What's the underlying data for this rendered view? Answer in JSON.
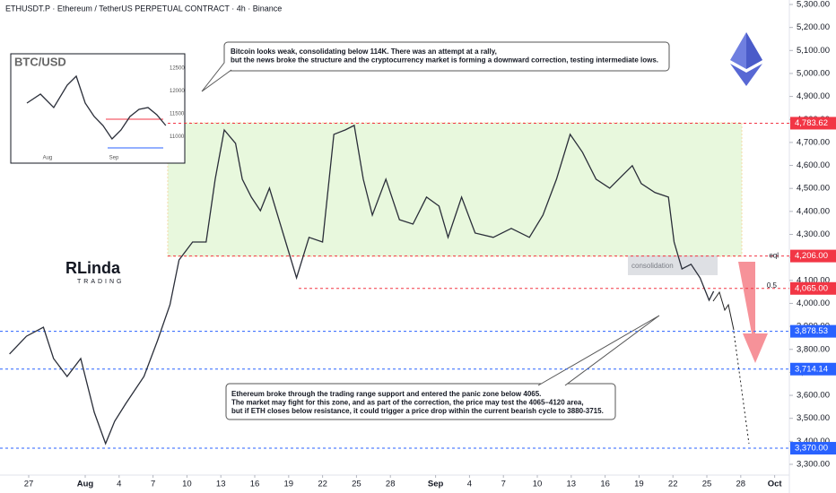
{
  "chart_data": [
    {
      "type": "line",
      "header": "ETHUSDT.P · Ethereum / TetherUS PERPETUAL CONTRACT · 4h · Binance",
      "x": [
        -1.7,
        -0.2,
        1.3,
        2.2,
        3.4,
        4.6,
        5.8,
        6.8,
        7.6,
        8.6,
        10.2,
        11.4,
        12.5,
        13.3,
        14.5,
        15.7,
        16.5,
        17.3,
        18.3,
        18.9,
        19.7,
        20.5,
        21.3,
        22.5,
        23.7,
        24.8,
        26.0,
        27.0,
        28.0,
        28.8,
        29.6,
        30.4,
        31.6,
        32.8,
        34.0,
        35.2,
        36.3,
        37.1,
        38.3,
        39.5,
        41.1,
        42.7,
        44.3,
        45.5,
        46.7,
        47.9,
        49.0,
        50.2,
        51.4,
        52.6,
        53.4,
        54.2,
        55.4,
        56.6,
        57.1,
        57.8,
        58.6,
        59.4,
        60.2,
        60.6
      ],
      "values": [
        3780,
        3857,
        3896,
        3760,
        3682,
        3760,
        3526,
        3390,
        3487,
        3565,
        3682,
        3838,
        3994,
        4189,
        4267,
        4267,
        4540,
        4754,
        4696,
        4540,
        4462,
        4403,
        4501,
        4306,
        4111,
        4287,
        4267,
        4735,
        4754,
        4774,
        4540,
        4384,
        4540,
        4364,
        4345,
        4462,
        4423,
        4287,
        4462,
        4306,
        4287,
        4326,
        4287,
        4384,
        4540,
        4735,
        4657,
        4540,
        4501,
        4560,
        4599,
        4521,
        4482,
        4462,
        4267,
        4150,
        4170,
        4111,
        4014,
        4053
      ],
      "color": "#2a2e39",
      "xlim": [
        -2.54,
        67.3
      ],
      "ylim": [
        3253.2,
        5319.5
      ],
      "yticks": [
        {
          "value": 3300,
          "label": "3,300.00"
        },
        {
          "value": 3400,
          "label": "3,400.00"
        },
        {
          "value": 3500,
          "label": "3,500.00"
        },
        {
          "value": 3600,
          "label": "3,600.00"
        },
        {
          "value": 3700,
          "label": "3,700.00"
        },
        {
          "value": 3800,
          "label": "3,800.00"
        },
        {
          "value": 3900,
          "label": "3,900.00"
        },
        {
          "value": 4000,
          "label": "4,000.00"
        },
        {
          "value": 4100,
          "label": "4,100.00"
        },
        {
          "value": 4200,
          "label": "4,200.00"
        },
        {
          "value": 4300,
          "label": "4,300.00"
        },
        {
          "value": 4400,
          "label": "4,400.00"
        },
        {
          "value": 4500,
          "label": "4,500.00"
        },
        {
          "value": 4600,
          "label": "4,600.00"
        },
        {
          "value": 4700,
          "label": "4,700.00"
        },
        {
          "value": 4800,
          "label": "4,800.00"
        },
        {
          "value": 4900,
          "label": "4,900.00"
        },
        {
          "value": 5000,
          "label": "5,000.00"
        },
        {
          "value": 5100,
          "label": "5,100.00"
        },
        {
          "value": 5200,
          "label": "5,200.00"
        },
        {
          "value": 5300,
          "label": "5,300.00"
        }
      ],
      "xticks": [
        {
          "value": 0,
          "label": "27"
        },
        {
          "value": 5,
          "label": "Aug"
        },
        {
          "value": 8,
          "label": "4"
        },
        {
          "value": 11,
          "label": "7"
        },
        {
          "value": 14,
          "label": "10"
        },
        {
          "value": 17,
          "label": "13"
        },
        {
          "value": 20,
          "label": "16"
        },
        {
          "value": 23,
          "label": "19"
        },
        {
          "value": 26,
          "label": "22"
        },
        {
          "value": 29,
          "label": "25"
        },
        {
          "value": 32,
          "label": "28"
        },
        {
          "value": 36,
          "label": "Sep"
        },
        {
          "value": 39,
          "label": "4"
        },
        {
          "value": 42,
          "label": "7"
        },
        {
          "value": 45,
          "label": "10"
        },
        {
          "value": 48,
          "label": "13"
        },
        {
          "value": 51,
          "label": "16"
        },
        {
          "value": 54,
          "label": "19"
        },
        {
          "value": 57,
          "label": "22"
        },
        {
          "value": 60,
          "label": "25"
        },
        {
          "value": 63,
          "label": "28"
        },
        {
          "value": 66,
          "label": "Oct"
        }
      ],
      "levels": [
        {
          "value": 4783.62,
          "label": "4,783.62",
          "color": "#f23645"
        },
        {
          "value": 4206,
          "label": "4,206.00",
          "color": "#f23645"
        },
        {
          "value": 4065,
          "label": "4,065.00",
          "color": "#f23645"
        },
        {
          "value": 3878.53,
          "label": "3,878.53",
          "color": "#2962ff"
        },
        {
          "value": 3714.14,
          "label": "3,714.14",
          "color": "#2962ff"
        },
        {
          "value": 3370,
          "label": "3,370.00",
          "color": "#2962ff"
        }
      ],
      "level_notes": [
        "eql",
        "0.5",
        "consolidation"
      ],
      "annotations": [
        [
          "Bitcoin looks weak, consolidating below 114K. There was an attempt at a rally,",
          "but the news broke the structure and the cryptocurrency market is forming a downward correction, testing intermediate lows."
        ],
        [
          "Ethereum broke through the trading range support and entered the panic zone below 4065.",
          "The market may fight for this zone, and as part of the correction, the price may test the 4065–4120 area,",
          "but if ETH closes below resistance, it could trigger a price drop within the current bearish cycle to 3880-3715."
        ]
      ],
      "logo": [
        "RLinda",
        "TRADING"
      ]
    },
    {
      "type": "line",
      "title": "BTC/USD",
      "x": [
        -9.6,
        -3.3,
        2.9,
        9.2,
        13.4,
        17.6,
        21.8,
        25.9,
        30.1,
        34.3,
        38.5,
        42.7,
        46.9,
        51.0,
        55.2
      ],
      "values": [
        11735,
        11931,
        11637,
        12127,
        12324,
        11735,
        11441,
        11245,
        10951,
        11147,
        11441,
        11598,
        11637,
        11480,
        11245
      ],
      "color": "#2a2e39",
      "xlim": [
        -16.3,
        62.8
      ],
      "ylim": [
        10461,
        12775
      ],
      "yticks": [
        11000,
        11500,
        12000,
        12500
      ],
      "xticks": [
        {
          "value": 0,
          "label": "Aug"
        },
        {
          "value": 31,
          "label": "Sep"
        }
      ]
    }
  ]
}
